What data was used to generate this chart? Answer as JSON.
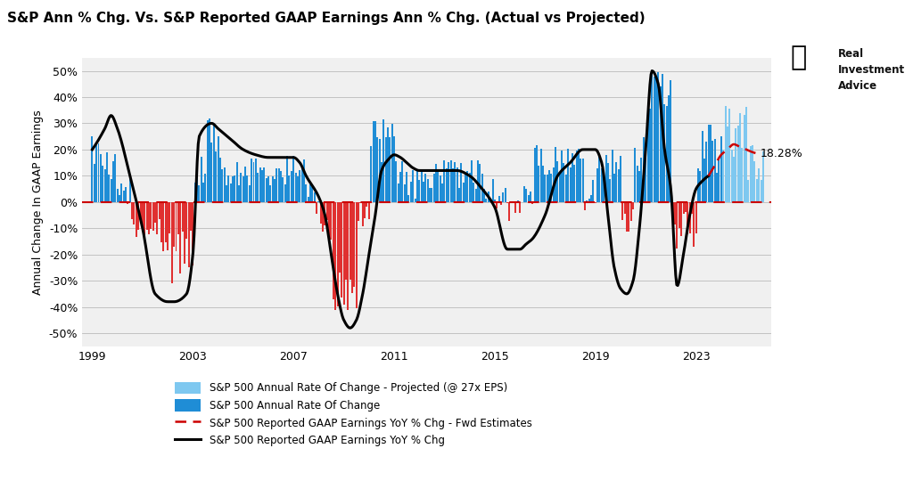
{
  "title": "S&P Ann % Chg. Vs. S&P Reported GAAP Earnings Ann % Chg. (Actual vs Projected)",
  "ylabel": "Annual Change In GAAP Earnings",
  "ylim": [
    -55,
    55
  ],
  "yticks": [
    -50,
    -40,
    -30,
    -20,
    -10,
    0,
    10,
    20,
    30,
    40,
    50
  ],
  "ytick_labels": [
    "-50%",
    "-40%",
    "-30%",
    "-20%",
    "-10%",
    "0%",
    "10%",
    "20%",
    "30%",
    "40%",
    "50%"
  ],
  "background_color": "#ffffff",
  "plot_bg_color": "#f0f0f0",
  "bar_color_positive": "#1f8dd6",
  "bar_color_negative": "#e03030",
  "bar_color_projected_positive": "#7ec8f0",
  "bar_color_projected_negative": "#f09090",
  "line_color": "#000000",
  "dashed_line_color": "#cc0000",
  "annotation_value": "18.28%",
  "watermark_text": "Real\nInvestment\nAdvice",
  "legend_entries": [
    "S&P 500 Annual Rate Of Change - Projected (@ 27x EPS)",
    "S&P 500 Annual Rate Of Change",
    "S&P 500 Reported GAAP Earnings YoY % Chg - Fwd Estimates",
    "S&P 500 Reported GAAP Earnings YoY % Chg"
  ],
  "xticks": [
    1999,
    2003,
    2007,
    2011,
    2015,
    2019,
    2023
  ],
  "xlim_left": 1998.6,
  "xlim_right": 2026.0
}
